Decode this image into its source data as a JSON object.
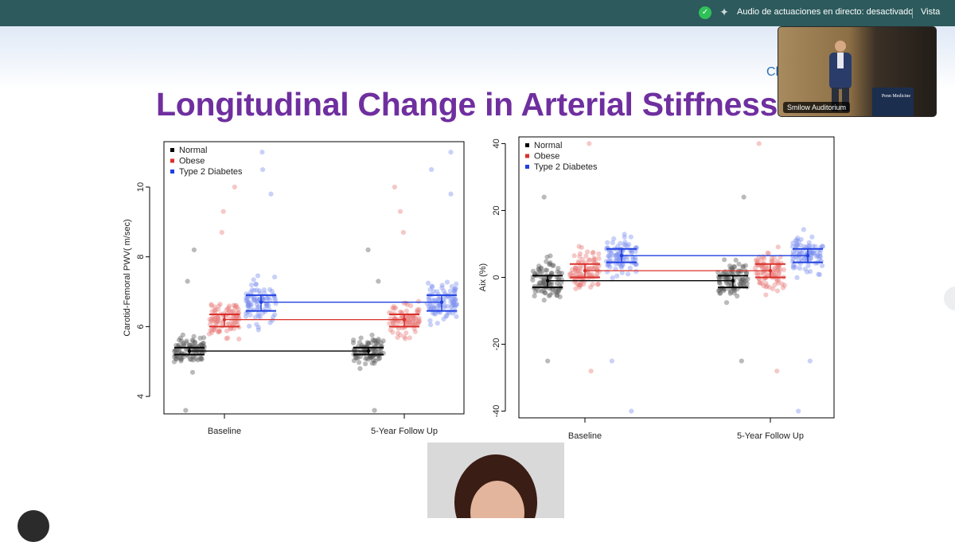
{
  "topbar": {
    "shield_icon": "shield-check-icon",
    "sparkle_icon": "sparkle-icon",
    "audio_status": "Audio de actuaciones en directo: desactivado",
    "view_label": "Vista"
  },
  "slide": {
    "title": "Longitudinal Change in Arterial Stiffness",
    "corner_text": "Cl",
    "title_color": "#6f2f9f"
  },
  "video": {
    "label": "Smilow Auditorium",
    "lectern_text": "Penn Medicine"
  },
  "colors": {
    "normal": "#000000",
    "obese": "#d9302a",
    "diabetes": "#2040e0"
  },
  "chart_data": [
    {
      "type": "scatter",
      "title": "",
      "xlabel": "",
      "ylabel": "Carotid-Femoral PWV( m/sec)",
      "categories": [
        "Baseline",
        "5-Year Follow Up"
      ],
      "ylim": [
        3.5,
        11.3
      ],
      "yticks": [
        4,
        6,
        8,
        10
      ],
      "legend": [
        "Normal",
        "Obese",
        "Type 2 Diabetes"
      ],
      "legend_position": "top-left",
      "series": [
        {
          "name": "Normal",
          "means": [
            5.3,
            5.3
          ],
          "ci_low": [
            5.2,
            5.2
          ],
          "ci_high": [
            5.4,
            5.4
          ],
          "spread": [
            4.2,
            6.6
          ],
          "outliers": [
            3.6,
            8.2,
            7.3
          ]
        },
        {
          "name": "Obese",
          "means": [
            6.2,
            6.2
          ],
          "ci_low": [
            6.0,
            6.0
          ],
          "ci_high": [
            6.35,
            6.35
          ],
          "spread": [
            4.6,
            8.0
          ],
          "outliers": [
            9.3,
            10.0,
            8.7
          ]
        },
        {
          "name": "Type 2 Diabetes",
          "means": [
            6.7,
            6.7
          ],
          "ci_low": [
            6.45,
            6.45
          ],
          "ci_high": [
            6.9,
            6.9
          ],
          "spread": [
            4.7,
            9.0
          ],
          "outliers": [
            11.0,
            10.5,
            9.8
          ]
        }
      ]
    },
    {
      "type": "scatter",
      "title": "",
      "xlabel": "",
      "ylabel": "Aix (%)",
      "categories": [
        "Baseline",
        "5-Year Follow Up"
      ],
      "ylim": [
        -42,
        42
      ],
      "yticks": [
        -40,
        -20,
        0,
        20,
        40
      ],
      "legend": [
        "Normal",
        "Obese",
        "Type 2 Diabetes"
      ],
      "legend_position": "top-left",
      "series": [
        {
          "name": "Normal",
          "means": [
            -1,
            -1
          ],
          "ci_low": [
            -3,
            -3
          ],
          "ci_high": [
            0.5,
            0.5
          ],
          "spread": [
            -20,
            20
          ],
          "outliers": [
            -25,
            24
          ]
        },
        {
          "name": "Obese",
          "means": [
            2,
            2
          ],
          "ci_low": [
            0,
            0
          ],
          "ci_high": [
            4,
            4
          ],
          "spread": [
            -18,
            25
          ],
          "outliers": [
            -28,
            40
          ]
        },
        {
          "name": "Type 2 Diabetes",
          "means": [
            6.5,
            6.5
          ],
          "ci_low": [
            4.5,
            4.5
          ],
          "ci_high": [
            8.5,
            8.5
          ],
          "spread": [
            -12,
            28
          ],
          "outliers": [
            -40,
            -25
          ]
        }
      ]
    }
  ]
}
